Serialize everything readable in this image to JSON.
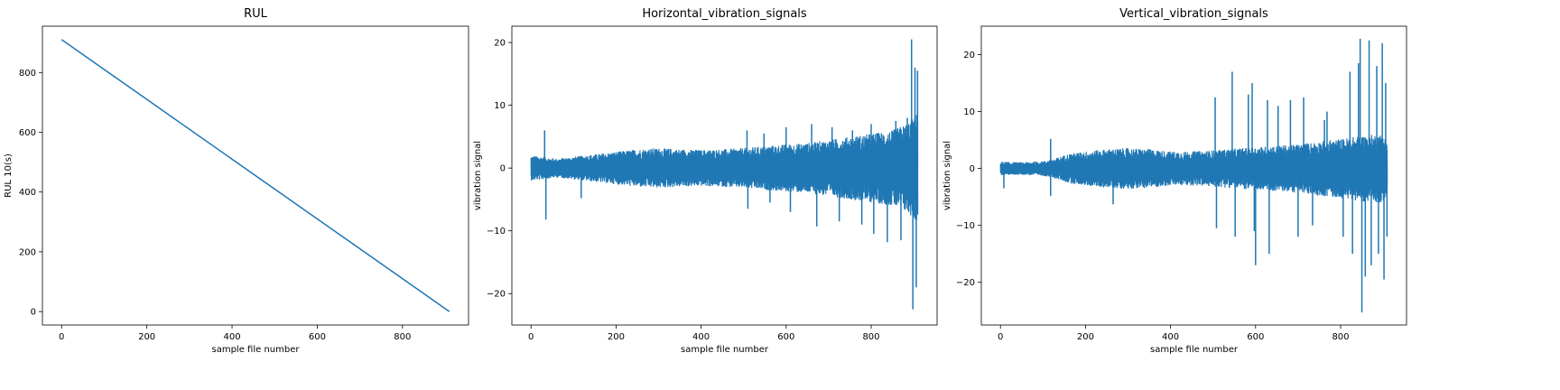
{
  "chart_data": [
    {
      "type": "line",
      "title": "RUL",
      "xlabel": "sample file number",
      "ylabel": "RUL 10(s)",
      "xlim": [
        -45,
        955
      ],
      "ylim": [
        -45,
        955
      ],
      "xticks": [
        0,
        200,
        400,
        600,
        800
      ],
      "yticks": [
        0,
        200,
        400,
        600,
        800
      ],
      "color": "#1f77b4",
      "series": [
        {
          "x": [
            0,
            910
          ],
          "y": [
            910,
            0
          ]
        }
      ]
    },
    {
      "type": "line",
      "title": "Horizontal_vibration_signals",
      "xlabel": "sample file number",
      "ylabel": "vibration signal",
      "xlim": [
        -45,
        955
      ],
      "ylim": [
        -25,
        22.6
      ],
      "xticks": [
        0,
        200,
        400,
        600,
        800
      ],
      "yticks": [
        -20,
        -10,
        0,
        10,
        20
      ],
      "ytick_labels": [
        "−20",
        "−10",
        "0",
        "10",
        "20"
      ],
      "color": "#1f77b4",
      "envelope": {
        "x": [
          0,
          30,
          60,
          100,
          150,
          200,
          250,
          300,
          350,
          400,
          450,
          500,
          550,
          600,
          650,
          700,
          750,
          800,
          850,
          880,
          900,
          910
        ],
        "upper": [
          2.0,
          1.8,
          1.5,
          1.8,
          2.2,
          2.6,
          3.0,
          3.2,
          3.0,
          2.9,
          3.0,
          3.2,
          3.5,
          3.8,
          4.0,
          4.5,
          5.0,
          5.5,
          6.0,
          7.0,
          8.0,
          9.0
        ],
        "lower": [
          -2.0,
          -1.8,
          -1.5,
          -1.8,
          -2.2,
          -2.6,
          -3.0,
          -3.2,
          -3.0,
          -2.9,
          -3.0,
          -3.2,
          -3.5,
          -3.8,
          -4.0,
          -4.5,
          -5.0,
          -5.5,
          -6.0,
          -7.0,
          -8.0,
          -9.0
        ]
      },
      "spikes": [
        {
          "x": 32,
          "y": 6.0
        },
        {
          "x": 35,
          "y": -8.2
        },
        {
          "x": 118,
          "y": -4.8
        },
        {
          "x": 508,
          "y": 6.0
        },
        {
          "x": 510,
          "y": -6.5
        },
        {
          "x": 548,
          "y": 5.5
        },
        {
          "x": 562,
          "y": -5.5
        },
        {
          "x": 600,
          "y": 6.5
        },
        {
          "x": 610,
          "y": -7.0
        },
        {
          "x": 660,
          "y": 7.0
        },
        {
          "x": 672,
          "y": -9.3
        },
        {
          "x": 708,
          "y": 6.5
        },
        {
          "x": 725,
          "y": -8.5
        },
        {
          "x": 756,
          "y": 6.0
        },
        {
          "x": 778,
          "y": -9.0
        },
        {
          "x": 800,
          "y": 7.0
        },
        {
          "x": 806,
          "y": -10.5
        },
        {
          "x": 838,
          "y": -11.8
        },
        {
          "x": 858,
          "y": 7.5
        },
        {
          "x": 870,
          "y": -11.5
        },
        {
          "x": 885,
          "y": 8.0
        },
        {
          "x": 895,
          "y": 20.5
        },
        {
          "x": 898,
          "y": -22.5
        },
        {
          "x": 903,
          "y": 16.0
        },
        {
          "x": 906,
          "y": -19.0
        },
        {
          "x": 909,
          "y": 15.5
        }
      ]
    },
    {
      "type": "line",
      "title": "Vertical_vibration_signals",
      "xlabel": "sample file number",
      "ylabel": "vibration signal",
      "xlim": [
        -45,
        955
      ],
      "ylim": [
        -27.5,
        25
      ],
      "xticks": [
        0,
        200,
        400,
        600,
        800
      ],
      "yticks": [
        -20,
        -10,
        0,
        10,
        20
      ],
      "ytick_labels": [
        "−20",
        "−10",
        "0",
        "10",
        "20"
      ],
      "color": "#1f77b4",
      "envelope": {
        "x": [
          0,
          50,
          100,
          130,
          160,
          200,
          250,
          300,
          350,
          400,
          450,
          500,
          550,
          600,
          650,
          700,
          750,
          800,
          850,
          880,
          900,
          910
        ],
        "upper": [
          1.2,
          1.1,
          1.3,
          1.8,
          2.6,
          3.0,
          3.4,
          3.6,
          3.4,
          3.0,
          3.0,
          3.2,
          3.5,
          3.8,
          4.0,
          4.3,
          4.8,
          5.2,
          5.8,
          6.0,
          6.0,
          5.0
        ],
        "lower": [
          -1.2,
          -1.1,
          -1.3,
          -1.8,
          -2.6,
          -3.0,
          -3.4,
          -3.6,
          -3.4,
          -3.0,
          -3.0,
          -3.2,
          -3.5,
          -3.8,
          -4.0,
          -4.3,
          -4.8,
          -5.2,
          -5.8,
          -6.0,
          -6.0,
          -5.0
        ]
      },
      "spikes": [
        {
          "x": 8,
          "y": -3.5
        },
        {
          "x": 118,
          "y": 5.2
        },
        {
          "x": 118,
          "y": -4.8
        },
        {
          "x": 265,
          "y": -6.3
        },
        {
          "x": 505,
          "y": 12.5
        },
        {
          "x": 508,
          "y": -10.5
        },
        {
          "x": 545,
          "y": 17.0
        },
        {
          "x": 552,
          "y": -12.0
        },
        {
          "x": 583,
          "y": 13.0
        },
        {
          "x": 592,
          "y": 15.0
        },
        {
          "x": 597,
          "y": -11.0
        },
        {
          "x": 600,
          "y": -17.0
        },
        {
          "x": 628,
          "y": 12.0
        },
        {
          "x": 632,
          "y": -15.0
        },
        {
          "x": 653,
          "y": 11.0
        },
        {
          "x": 682,
          "y": 12.0
        },
        {
          "x": 700,
          "y": -12.0
        },
        {
          "x": 713,
          "y": 12.5
        },
        {
          "x": 734,
          "y": -10.0
        },
        {
          "x": 762,
          "y": 8.5
        },
        {
          "x": 768,
          "y": 10.0
        },
        {
          "x": 806,
          "y": -12.0
        },
        {
          "x": 822,
          "y": 17.0
        },
        {
          "x": 828,
          "y": -15.0
        },
        {
          "x": 842,
          "y": 18.5
        },
        {
          "x": 846,
          "y": 22.8
        },
        {
          "x": 850,
          "y": -25.3
        },
        {
          "x": 858,
          "y": -19.0
        },
        {
          "x": 867,
          "y": 22.5
        },
        {
          "x": 872,
          "y": -17.0
        },
        {
          "x": 885,
          "y": 18.0
        },
        {
          "x": 889,
          "y": -15.0
        },
        {
          "x": 898,
          "y": 22.0
        },
        {
          "x": 902,
          "y": -19.5
        },
        {
          "x": 906,
          "y": 15.0
        },
        {
          "x": 909,
          "y": -12.0
        }
      ]
    }
  ]
}
